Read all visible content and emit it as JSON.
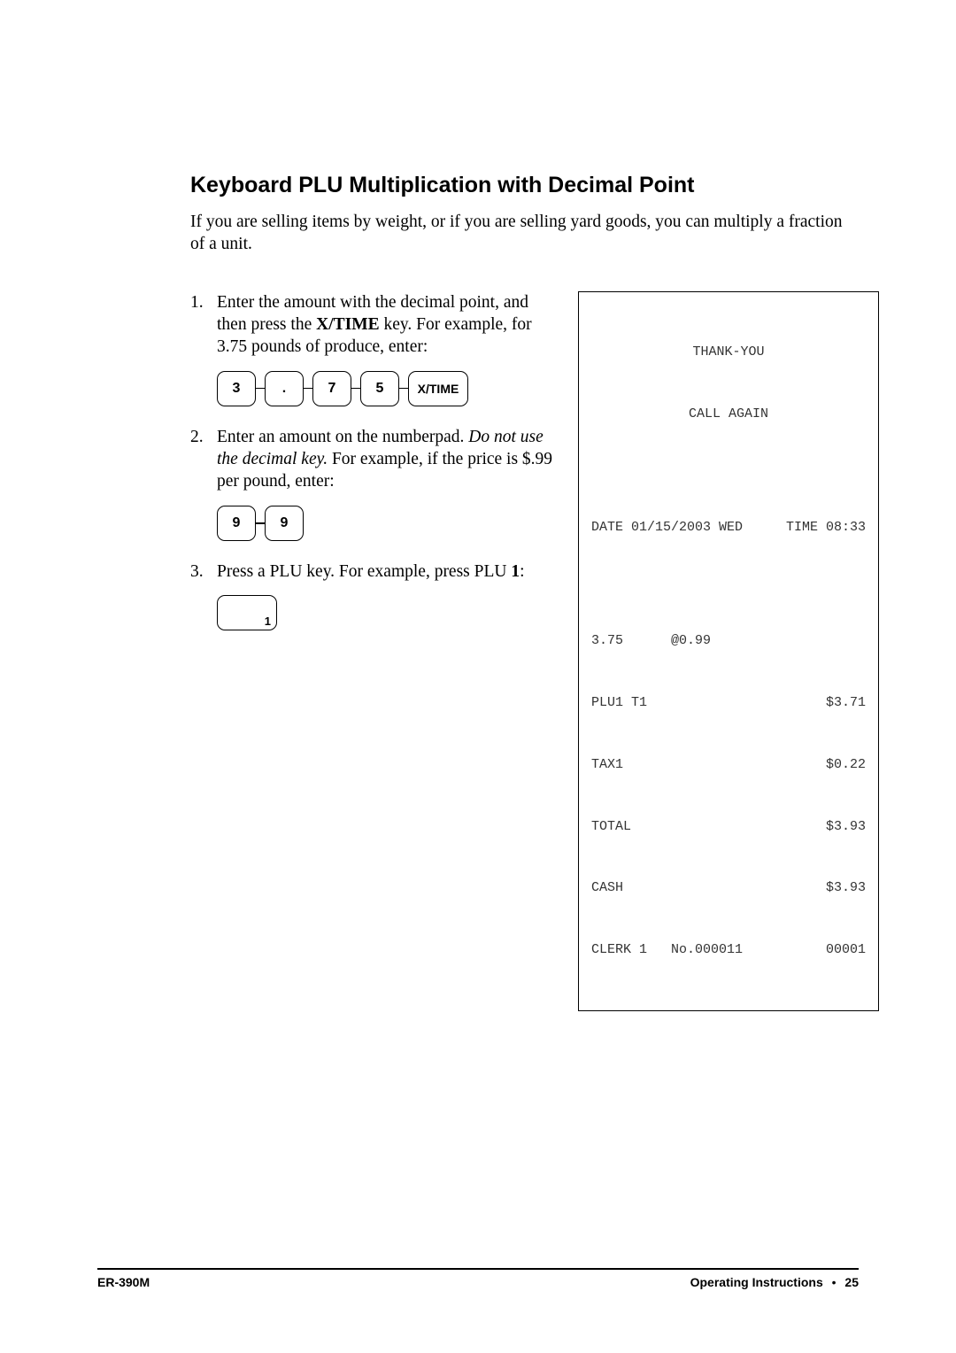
{
  "heading": "Keyboard PLU Multiplication with Decimal Point",
  "intro": "If you are selling items by weight, or if you are selling yard goods, you can multiply a fraction of a unit.",
  "steps": [
    {
      "num": "1.",
      "text_pre": "Enter the amount with the decimal point, and then press the ",
      "text_bold": "X/TIME",
      "text_post": " key.   For example, for 3.75 pounds of produce, enter:"
    },
    {
      "num": "2.",
      "text_pre": "Enter an amount on the numberpad.   ",
      "text_italic": "Do not use the decimal key.",
      "text_post": "   For example, if the price is $.99 per pound, enter:"
    },
    {
      "num": "3.",
      "text_pre": "Press a PLU key.   For example, press PLU ",
      "text_bold": "1",
      "text_post": ":"
    }
  ],
  "keys": {
    "row1": [
      "3",
      ".",
      "7",
      "5",
      "X/TIME"
    ],
    "row2": [
      "9",
      "9"
    ],
    "row3_sub": "1"
  },
  "receipt": {
    "header1": "THANK-YOU",
    "header2": "CALL AGAIN",
    "date_label": "DATE",
    "date_value": "01/15/2003 WED",
    "time_label": "TIME",
    "time_value": "08:33",
    "lines": [
      {
        "c1": "3.75",
        "c2": "@0.99",
        "c3": ""
      },
      {
        "c1": "PLU1 T1",
        "c2": "",
        "c3": "$3.71"
      },
      {
        "c1": "TAX1",
        "c2": "",
        "c3": "$0.22"
      },
      {
        "c1": "TOTAL",
        "c2": "",
        "c3": "$3.93"
      },
      {
        "c1": "CASH",
        "c2": "",
        "c3": "$3.93"
      },
      {
        "c1": "CLERK 1",
        "c2": "No.000011",
        "c3": "00001"
      }
    ]
  },
  "footer": {
    "left": "ER-390M",
    "right_label": "Operating Instructions",
    "bullet": "•",
    "page": "25"
  }
}
